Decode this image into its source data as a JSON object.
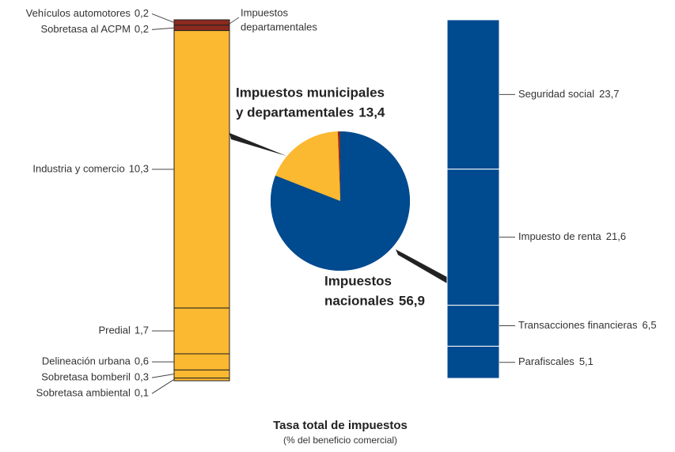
{
  "chart_data": {
    "type": "bar-of-pie",
    "title": "Tasa total de impuestos",
    "subtitle": "(% del beneficio comercial)",
    "annotation": {
      "lines": [
        "Impuestos",
        "departamentales"
      ],
      "color": "#8b2a1e"
    },
    "groups": [
      {
        "label_lines": [
          "Impuestos municipales",
          "y departamentales"
        ],
        "value": 13.4,
        "value_label": "13,4",
        "color": "#fbb831",
        "side": "left",
        "segments": [
          {
            "name": "Vehículos automotores",
            "value": 0.2,
            "value_label": "0,2",
            "color": "#8b2a1e",
            "label_color": "#8b2a1e"
          },
          {
            "name": "Sobretasa al ACPM",
            "value": 0.2,
            "value_label": "0,2",
            "color": "#8b2a1e",
            "label_color": "#8b2a1e"
          },
          {
            "name": "Industria y comercio",
            "value": 10.3,
            "value_label": "10,3",
            "color": "#fbb831"
          },
          {
            "name": "Predial",
            "value": 1.7,
            "value_label": "1,7",
            "color": "#fbb831"
          },
          {
            "name": "Delineación urbana",
            "value": 0.6,
            "value_label": "0,6",
            "color": "#fbb831"
          },
          {
            "name": "Sobretasa bomberil",
            "value": 0.3,
            "value_label": "0,3",
            "color": "#fbb831"
          },
          {
            "name": "Sobretasa ambiental",
            "value": 0.1,
            "value_label": "0,1",
            "color": "#fbb831"
          }
        ]
      },
      {
        "label_lines": [
          "Impuestos",
          "nacionales"
        ],
        "value": 56.9,
        "value_label": "56,9",
        "color": "#004a8f",
        "side": "right",
        "segments": [
          {
            "name": "Seguridad social",
            "value": 23.7,
            "value_label": "23,7",
            "color": "#004a8f"
          },
          {
            "name": "Impuesto de renta",
            "value": 21.6,
            "value_label": "21,6",
            "color": "#004a8f"
          },
          {
            "name": "Transacciones financieras",
            "value": 6.5,
            "value_label": "6,5",
            "color": "#004a8f"
          },
          {
            "name": "Parafiscales",
            "value": 5.1,
            "value_label": "5,1",
            "color": "#004a8f"
          }
        ]
      }
    ]
  }
}
